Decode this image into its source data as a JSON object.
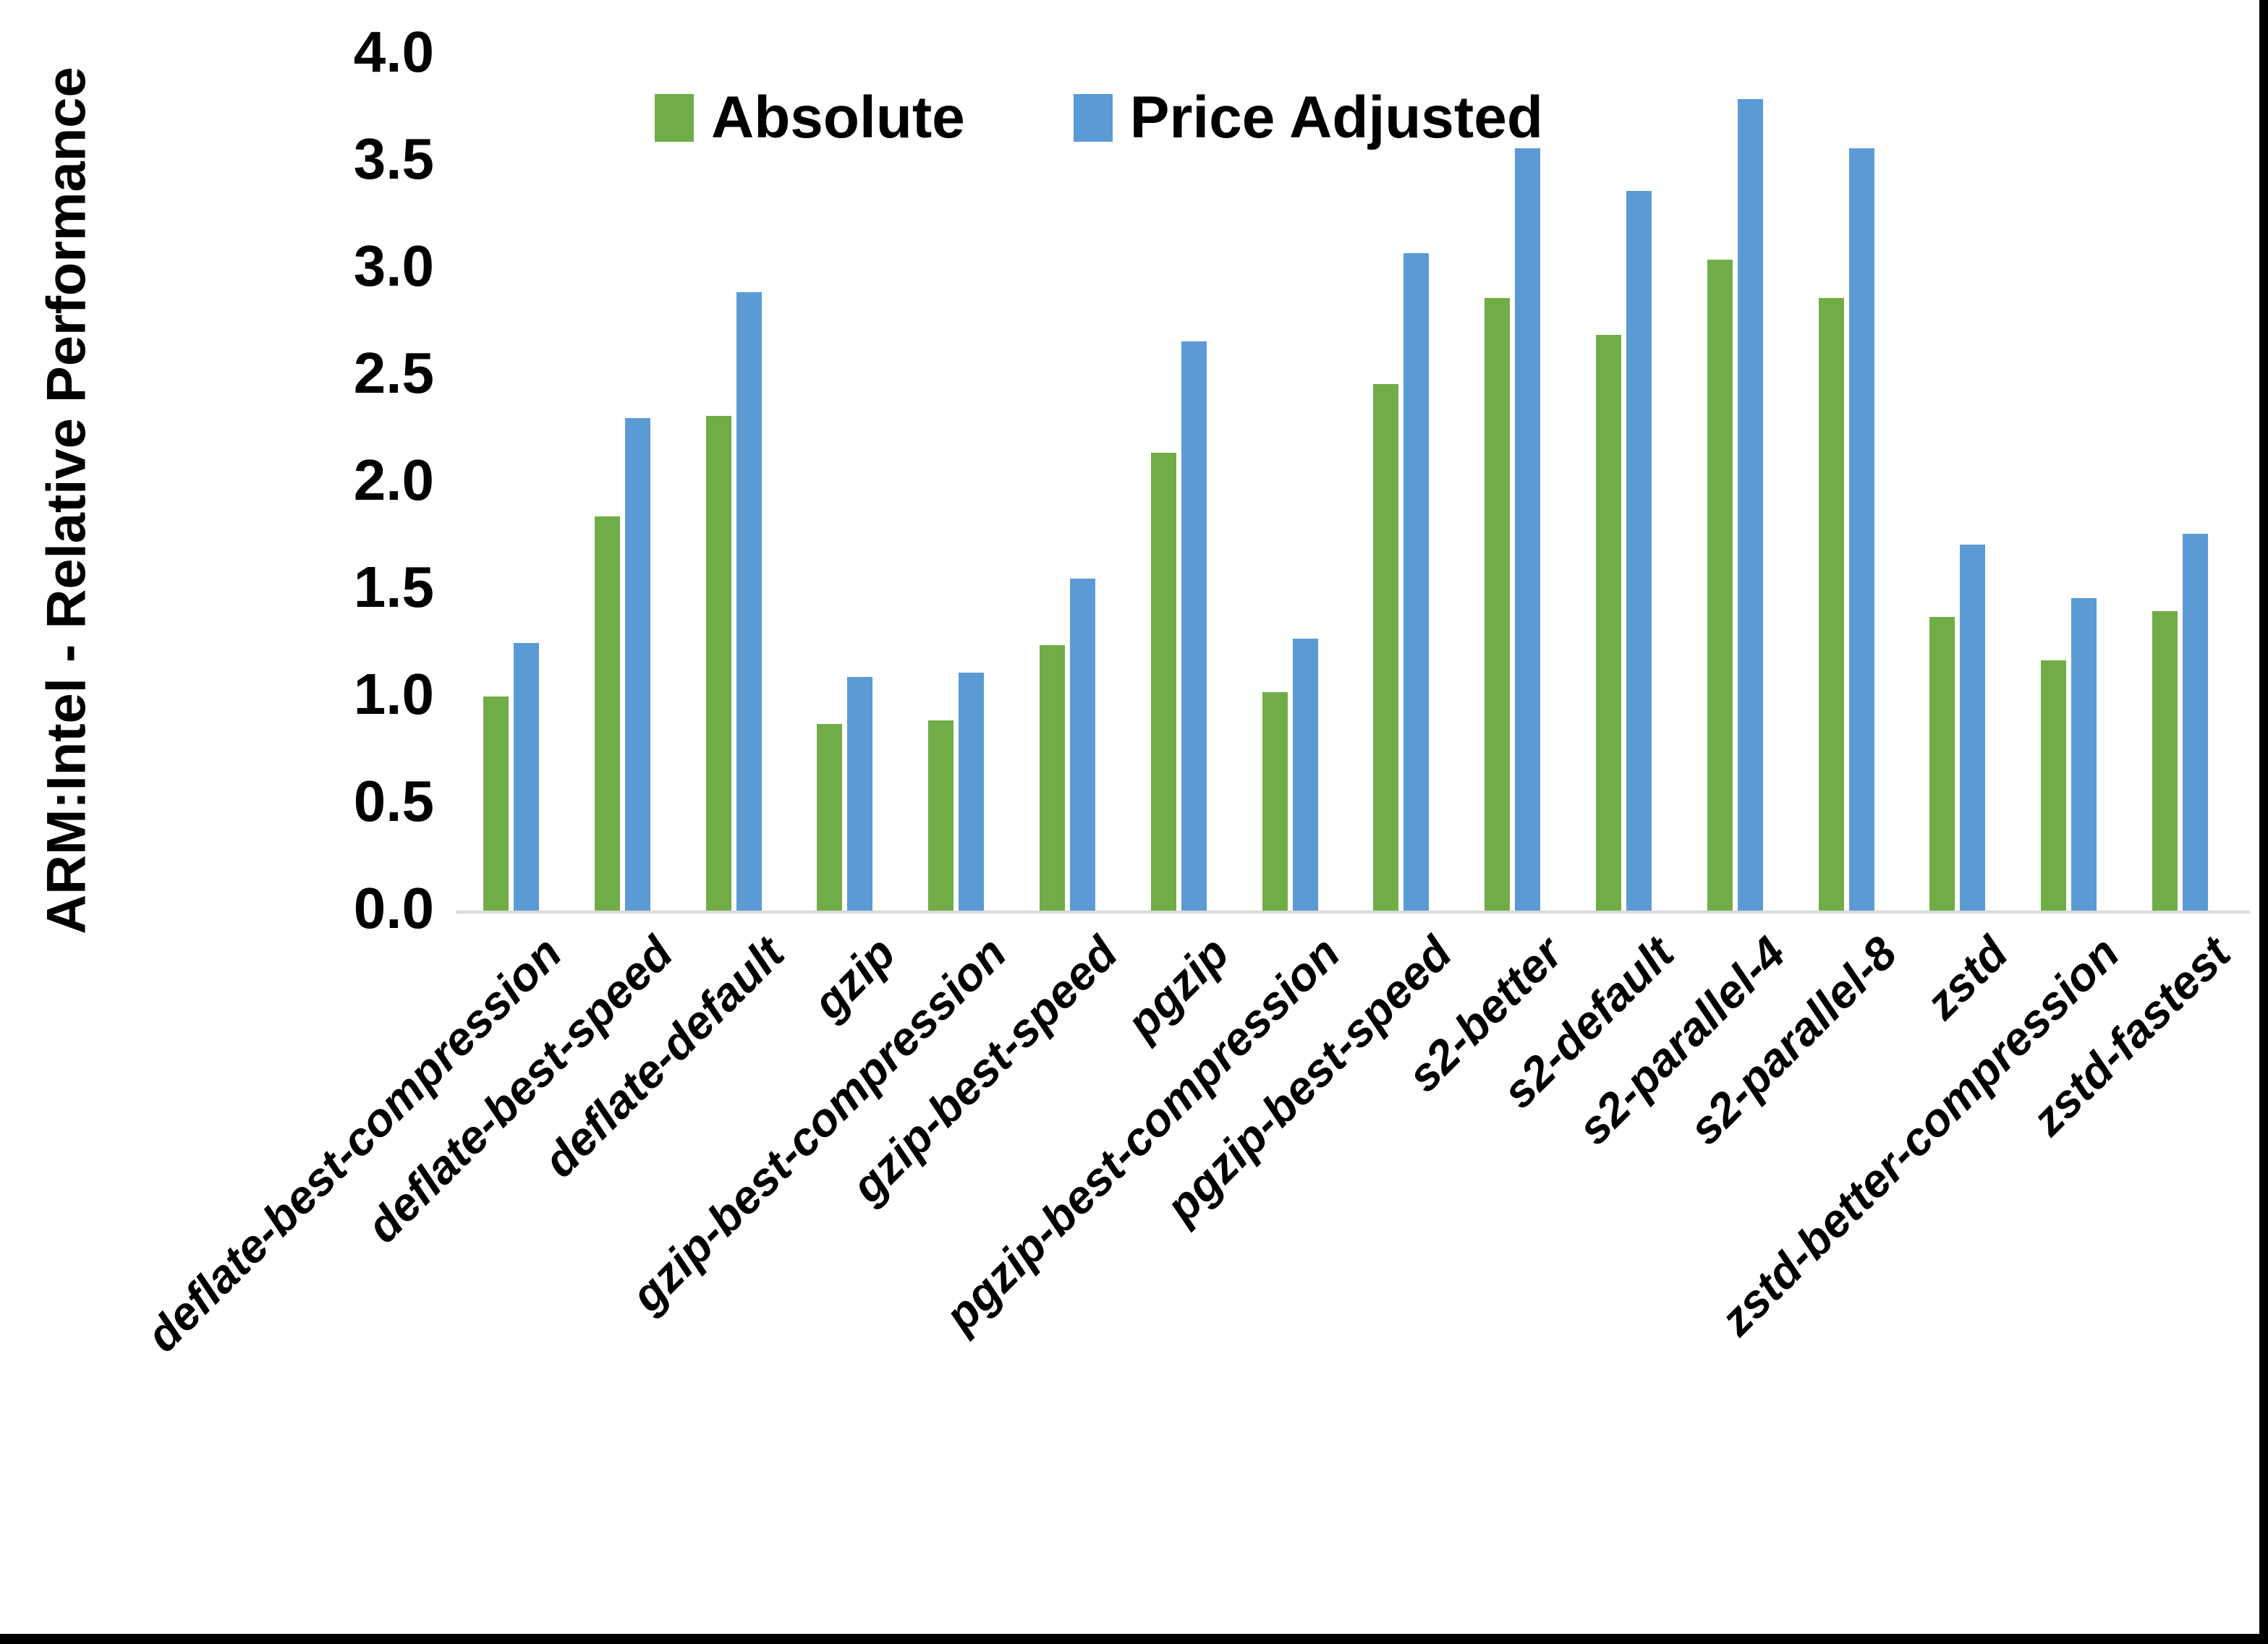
{
  "chart_data": {
    "type": "bar",
    "title": "",
    "xlabel": "",
    "ylabel": "ARM:Intel - Relative Performance",
    "ylim": [
      0.0,
      4.0
    ],
    "ytick_step": 0.5,
    "ytick_labels": [
      "0.0",
      "0.5",
      "1.0",
      "1.5",
      "2.0",
      "2.5",
      "3.0",
      "3.5",
      "4.0"
    ],
    "grid": false,
    "legend_position": "top-center",
    "categories": [
      "deflate-best-compression",
      "deflate-best-speed",
      "deflate-default",
      "gzip",
      "gzip-best-compression",
      "gzip-best-speed",
      "pgzip",
      "pgzip-best-compression",
      "pgzip-best-speed",
      "s2-better",
      "s2-default",
      "s2-parallel-4",
      "s2-parallel-8",
      "zstd",
      "zstd-better-compression",
      "zstd-fastest"
    ],
    "series": [
      {
        "name": "Absolute",
        "color": "#70AD47",
        "values": [
          1.0,
          1.84,
          2.31,
          0.87,
          0.89,
          1.24,
          2.14,
          1.02,
          2.46,
          2.86,
          2.69,
          3.04,
          2.86,
          1.37,
          1.17,
          1.4
        ]
      },
      {
        "name": "Price Adjusted",
        "color": "#5B9BD5",
        "values": [
          1.25,
          2.3,
          2.89,
          1.09,
          1.11,
          1.55,
          2.66,
          1.27,
          3.07,
          3.56,
          3.36,
          3.79,
          3.56,
          1.71,
          1.46,
          1.76
        ]
      }
    ]
  },
  "colors": {
    "background": "#FFFFFF",
    "axis_baseline": "#D9D9D9",
    "text": "#000000",
    "border_strips": "#000000"
  }
}
